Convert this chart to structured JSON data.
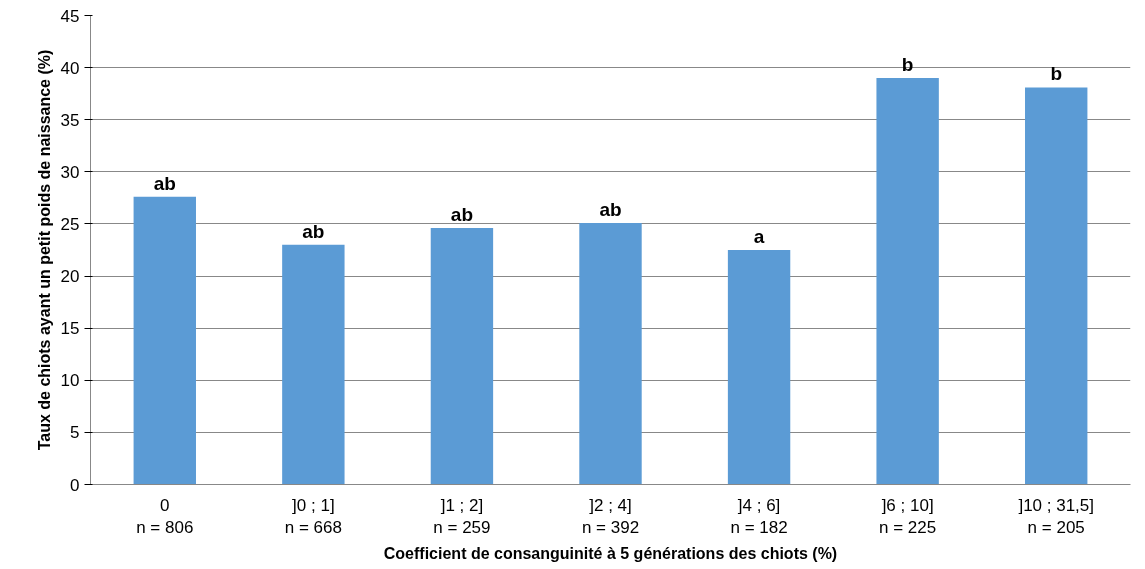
{
  "chart_data": {
    "type": "bar",
    "xlabel": "Coefficient de consanguinité à 5 générations des chiots (%)",
    "ylabel": "Taux de chiots ayant un petit poids de naissance (%)",
    "categories": [
      "0\nn = 806",
      "]0 ; 1]\nn = 668",
      "]1 ; 2]\nn = 259",
      "]2 ; 4]\nn = 392",
      "]4 ; 6]\nn = 182",
      "]6 ; 10]\nn = 225",
      "]10 ; 31,5]\nn = 205"
    ],
    "values": [
      27.6,
      23.0,
      24.6,
      25.1,
      22.5,
      39.0,
      38.1
    ],
    "color": "#5b9bd5",
    "ylim": [
      0,
      45
    ],
    "yticks": [
      0,
      5,
      10,
      15,
      20,
      25,
      30,
      35,
      40,
      45
    ],
    "grid": "y",
    "annotations": [
      {
        "text": "ab",
        "x": "0\nn = 806",
        "y": 27.6
      },
      {
        "text": "ab",
        "x": "]0 ; 1]\nn = 668",
        "y": 23.0
      },
      {
        "text": "ab",
        "x": "]1 ; 2]\nn = 259",
        "y": 24.6
      },
      {
        "text": "ab",
        "x": "]2 ; 4]\nn = 392",
        "y": 25.1
      },
      {
        "text": "a",
        "x": "]4 ; 6]\nn = 182",
        "y": 22.5
      },
      {
        "text": "b",
        "x": "]6 ; 10]\nn = 225",
        "y": 39.0
      },
      {
        "text": "b",
        "x": "]10 ; 31,5]\nn = 205",
        "y": 38.1
      }
    ]
  }
}
